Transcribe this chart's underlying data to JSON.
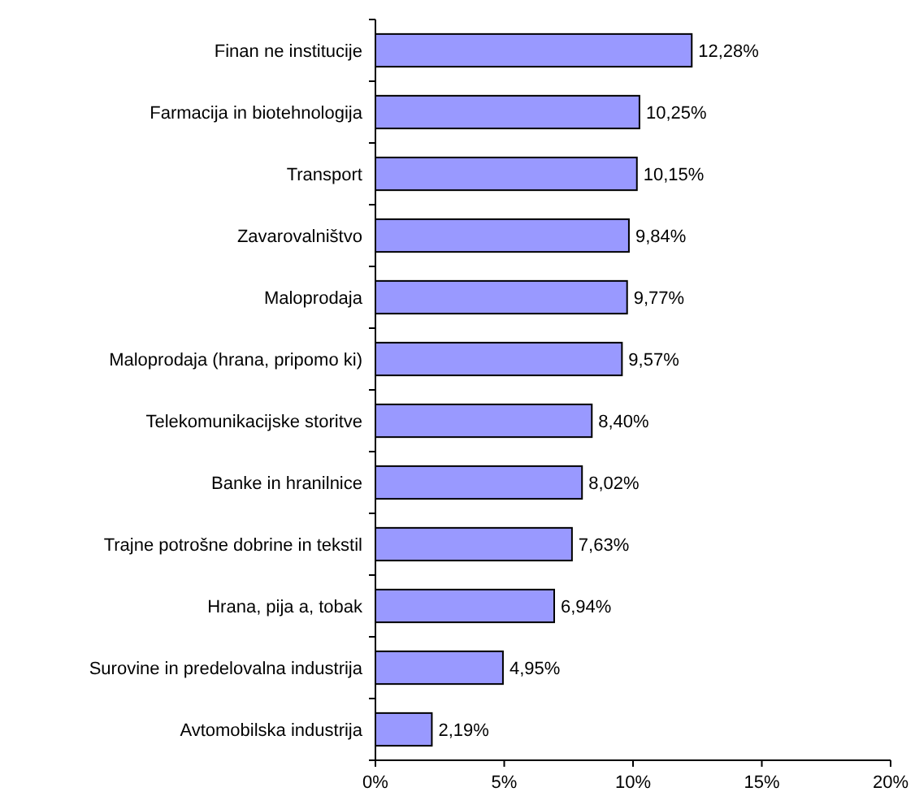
{
  "chart_data": {
    "type": "bar",
    "orientation": "horizontal",
    "categories": [
      "Finan ne institucije",
      "Farmacija in biotehnologija",
      "Transport",
      "Zavarovalništvo",
      "Maloprodaja",
      "Maloprodaja (hrana, pripomo ki)",
      "Telekomunikacijske storitve",
      "Banke in hranilnice",
      "Trajne potrošne dobrine in tekstil",
      "Hrana, pija a, tobak",
      "Surovine in predelovalna industrija",
      "Avtomobilska industrija"
    ],
    "values": [
      12.28,
      10.25,
      10.15,
      9.84,
      9.77,
      9.57,
      8.4,
      8.02,
      7.63,
      6.94,
      4.95,
      2.19
    ],
    "value_labels": [
      "12,28%",
      "10,25%",
      "10,15%",
      "9,84%",
      "9,77%",
      "9,57%",
      "8,40%",
      "8,02%",
      "7,63%",
      "6,94%",
      "4,95%",
      "2,19%"
    ],
    "color": "#9999ff",
    "xlim": [
      0,
      20
    ],
    "xticks": [
      {
        "value": 0,
        "label": "0%"
      },
      {
        "value": 5,
        "label": "5%"
      },
      {
        "value": 10,
        "label": "10%"
      },
      {
        "value": 15,
        "label": "15%"
      },
      {
        "value": 20,
        "label": "20%"
      }
    ],
    "grid": false
  }
}
